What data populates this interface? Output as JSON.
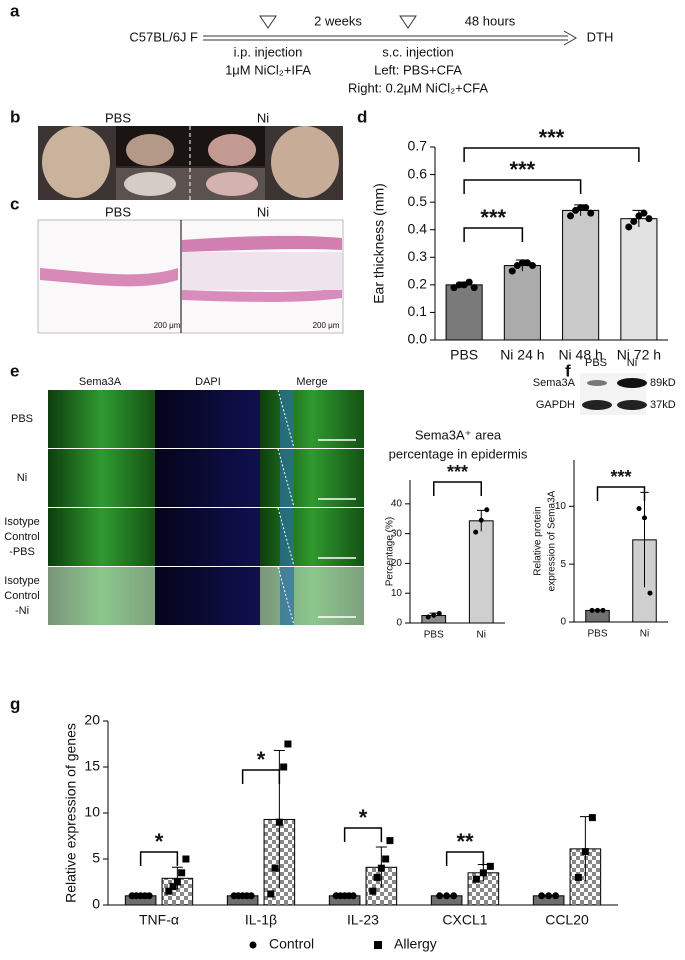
{
  "panel_labels": [
    "a",
    "b",
    "c",
    "d",
    "e",
    "f",
    "g"
  ],
  "timeline": {
    "start": "C57BL/6J F",
    "end": "DTH",
    "intervals": [
      "2 weeks",
      "48 hours"
    ],
    "step1": [
      "i.p. injection",
      "1μM NiCl₂+IFA"
    ],
    "step2": [
      "s.c. injection",
      "Left: PBS+CFA",
      "Right: 0.2μM NiCl₂+CFA"
    ]
  },
  "photo": {
    "labels": [
      "PBS",
      "Ni"
    ]
  },
  "histology": {
    "labels": [
      "PBS",
      "Ni"
    ],
    "scale_bars": [
      "200 μm",
      "200 μm"
    ]
  },
  "staining": {
    "columns": [
      "Sema3A",
      "DAPI",
      "Merge"
    ],
    "rows": [
      [
        "PBS"
      ],
      [
        "Ni"
      ],
      [
        "Isotype",
        "Control",
        "-PBS"
      ],
      [
        "Isotype",
        "Control",
        "-Ni"
      ]
    ]
  },
  "blot": {
    "lanes": [
      "PBS",
      "Ni"
    ],
    "proteins": [
      "Sema3A",
      "GAPDH"
    ],
    "sizes": [
      "89kD",
      "37kD"
    ]
  },
  "chart_data": [
    {
      "type": "bar",
      "ylabel": "Ear thickness (mm)",
      "categories": [
        "PBS",
        "Ni 24 h",
        "Ni 48 h",
        "Ni 72 h"
      ],
      "series": [
        {
          "colors": [
            "#7a7a7a",
            "#ababab",
            "#c9c9c9",
            "#e2e2e2"
          ],
          "marker": "circle",
          "values": [
            0.2,
            0.27,
            0.47,
            0.44
          ],
          "errors": [
            0.01,
            0.02,
            0.02,
            0.03
          ],
          "points": [
            [
              0.19,
              0.2,
              0.2,
              0.21,
              0.19
            ],
            [
              0.25,
              0.27,
              0.28,
              0.28,
              0.27
            ],
            [
              0.45,
              0.47,
              0.48,
              0.48,
              0.46
            ],
            [
              0.41,
              0.43,
              0.45,
              0.46,
              0.44
            ]
          ]
        }
      ],
      "ylim": [
        0,
        0.7
      ],
      "yticks": [
        {
          "value": 0,
          "label": "0.0"
        },
        0.1,
        0.2,
        0.3,
        0.4,
        0.5,
        0.6,
        0.7
      ],
      "annotations": [
        "***",
        "***",
        "***"
      ]
    },
    {
      "type": "bar",
      "title": [
        "Sema3A⁺ area",
        "percentage in epidermis"
      ],
      "ylabel": "Percentage (%)",
      "categories": [
        "PBS",
        "Ni"
      ],
      "series": [
        {
          "colors": [
            "#8c8c8c",
            "#cfcfcf"
          ],
          "marker": "circle",
          "values": [
            2.5,
            34.3
          ],
          "errors": [
            0.8,
            3.5
          ],
          "points": [
            [
              2.0,
              2.6,
              3.2
            ],
            [
              30.5,
              34.5,
              38
            ]
          ]
        }
      ],
      "ylim": [
        0,
        48
      ],
      "yticks": [
        0,
        10,
        20,
        30,
        40
      ],
      "annotations": [
        "***"
      ]
    },
    {
      "type": "bar",
      "ylabel": [
        "Relative protein",
        "expression of Sema3A"
      ],
      "categories": [
        "PBS",
        "Ni"
      ],
      "series": [
        {
          "colors": [
            "#707070",
            "#cfcfcf"
          ],
          "marker": "circle",
          "values": [
            1,
            7.1
          ],
          "errors": [
            0.05,
            4.1
          ],
          "points": [
            [
              1,
              1,
              1
            ],
            [
              9.8,
              9,
              2.5
            ]
          ]
        }
      ],
      "ylim": [
        0,
        14
      ],
      "yticks": [
        0,
        5,
        10
      ],
      "annotations": [
        "***"
      ]
    },
    {
      "type": "bar",
      "ylabel": "Relative expression of genes",
      "categories": [
        "TNF-α",
        "IL-1β",
        "IL-23",
        "CXCL1",
        "CCL20"
      ],
      "series": [
        {
          "name": "Control",
          "color": "#6e6e6e",
          "marker": "circle",
          "values": [
            1,
            1,
            1,
            1,
            1
          ],
          "errors": [
            0.05,
            0.05,
            0.05,
            0.05,
            0.05
          ],
          "points": [
            [
              1,
              1,
              1,
              1,
              1
            ],
            [
              1,
              1,
              1,
              1,
              1
            ],
            [
              1,
              1,
              1,
              1,
              1
            ],
            [
              1,
              1,
              1
            ],
            [
              1,
              1,
              1
            ]
          ]
        },
        {
          "name": "Allergy",
          "color": "#9a9a9a",
          "pattern": "checker",
          "marker": "square",
          "values": [
            2.9,
            9.3,
            4.1,
            3.5,
            6.1
          ],
          "errors": [
            1.2,
            7.5,
            2.2,
            0.9,
            3.5
          ],
          "points": [
            [
              1.5,
              2,
              2.5,
              3.5,
              5
            ],
            [
              1.2,
              4,
              9,
              15,
              17.5
            ],
            [
              1.5,
              3,
              4,
              5,
              7
            ],
            [
              2.8,
              3.5,
              4.2
            ],
            [
              3,
              5.8,
              9.5
            ]
          ]
        }
      ],
      "ylim": [
        0,
        20
      ],
      "yticks": [
        0,
        5,
        10,
        15,
        20
      ],
      "annotations": [
        "*",
        "*",
        "*",
        "**"
      ],
      "legend": "bottom"
    }
  ]
}
